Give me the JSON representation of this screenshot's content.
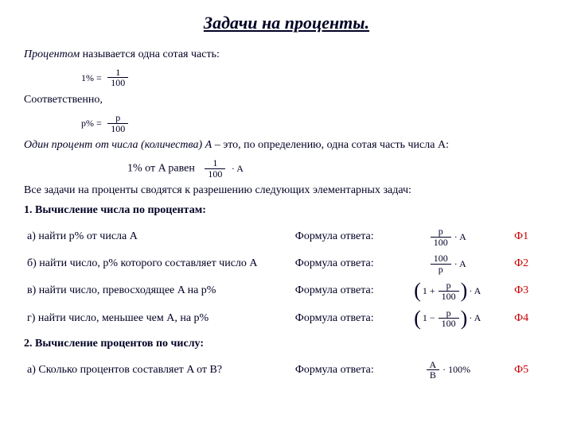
{
  "colors": {
    "text": "#000024",
    "red": "#cc0000",
    "background": "#ffffff",
    "title": "#000024"
  },
  "title": "Задачи на проценты.",
  "def": {
    "percent_label": "Процентом",
    "percent_rest": " называется одна сотая часть:",
    "formula1_lhs": "1% =",
    "formula1_num": "1",
    "formula1_den": "100",
    "sootv": "Соответственно,",
    "formula2_lhs": "p% =",
    "formula2_num": "p",
    "formula2_den": "100",
    "one_percent_label": "Один процент от числа (количества) A",
    "one_percent_rest": " – это, по определению, одна сотая часть числа A:",
    "one_pct_eq_lhs": "1% от A равен",
    "one_pct_num": "1",
    "one_pct_den": "100",
    "one_pct_rhs": "· A",
    "all_tasks": "Все задачи на проценты сводятся к разрешению следующих элементарных задач:"
  },
  "section1": "1. Вычисление числа по процентам:",
  "rows": [
    {
      "task": "а) найти p% от числа A",
      "label": "Формула ответа:",
      "formula_html": "frac_p_100_dot_A",
      "phi": "Ф1"
    },
    {
      "task": "б) найти число, p% которого составляет число A",
      "label": "Формула ответа:",
      "formula_html": "frac_100_p_dot_A",
      "phi": "Ф2"
    },
    {
      "task": "в) найти число, превосходящее A на p%",
      "label": "Формула ответа:",
      "formula_html": "paren_1_plus_p_100_dot_A",
      "phi": "Ф3"
    },
    {
      "task": "г) найти число, меньшее чем A, на p%",
      "label": "Формула ответа:",
      "formula_html": "paren_1_minus_p_100_dot_A",
      "phi": "Ф4"
    }
  ],
  "section2": "2. Вычисление процентов по числу:",
  "row5": {
    "task": "а) Сколько процентов составляет A от B?",
    "label": "Формула ответа:",
    "formula_html": "frac_A_B_100pct",
    "phi": "Ф5"
  },
  "formulas": {
    "frac_p_100_dot_A": {
      "num": "p",
      "den": "100",
      "suffix": "· A"
    },
    "frac_100_p_dot_A": {
      "num": "100",
      "den": "p",
      "suffix": "· A"
    },
    "paren_1_plus_p_100_dot_A": {
      "inner_lead": "1 +",
      "num": "p",
      "den": "100",
      "suffix": "· A"
    },
    "paren_1_minus_p_100_dot_A": {
      "inner_lead": "1 −",
      "num": "p",
      "den": "100",
      "suffix": "· A"
    },
    "frac_A_B_100pct": {
      "num": "A",
      "den": "B",
      "suffix": "· 100%"
    }
  }
}
